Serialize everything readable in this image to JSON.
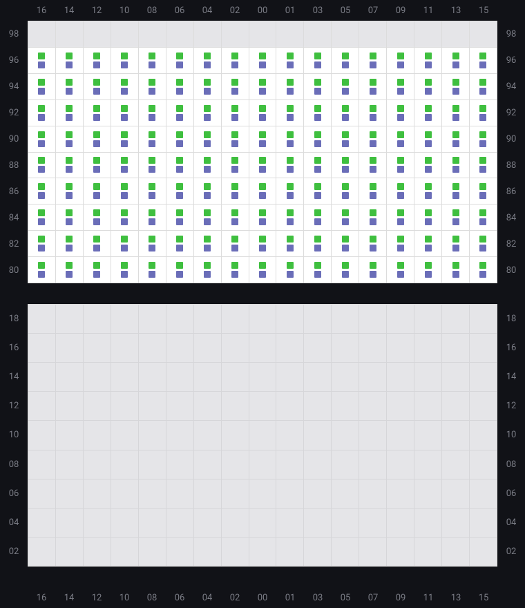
{
  "columns": [
    "16",
    "14",
    "12",
    "10",
    "08",
    "06",
    "04",
    "02",
    "00",
    "01",
    "03",
    "05",
    "07",
    "09",
    "11",
    "13",
    "15"
  ],
  "top": {
    "row_labels": [
      "98",
      "96",
      "94",
      "92",
      "90",
      "88",
      "86",
      "84",
      "82",
      "80"
    ],
    "empty_rows": [
      "98"
    ],
    "cell_has_markers": true
  },
  "bottom": {
    "row_labels": [
      "18",
      "16",
      "14",
      "12",
      "10",
      "08",
      "06",
      "04",
      "02"
    ],
    "empty_rows": [
      "18",
      "16",
      "14",
      "12",
      "10",
      "08",
      "06",
      "04",
      "02"
    ],
    "cell_has_markers": false
  },
  "colors": {
    "marker_a": "#3fbf3f",
    "marker_b": "#6a6db8",
    "filled_bg": "#ffffff",
    "empty_bg": "#e5e5e8",
    "page_bg": "#111217",
    "label_color": "#7a7c85",
    "grid_line": "#dcdcdc"
  },
  "label_fontsize": 13
}
